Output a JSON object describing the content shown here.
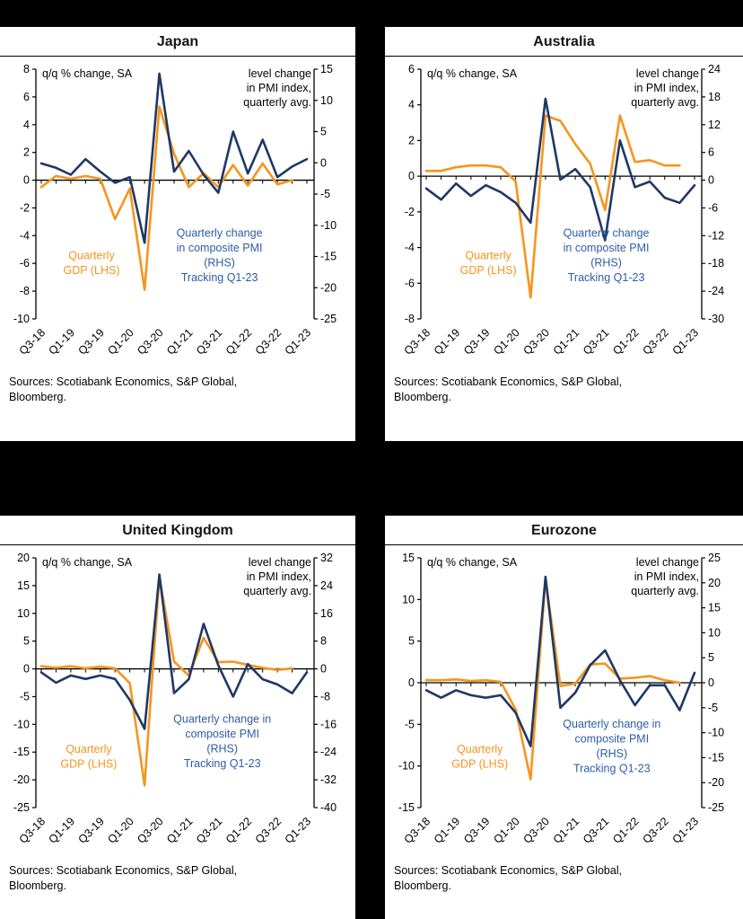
{
  "page": {
    "background": "#000000",
    "panel_background": "#FFFFFF"
  },
  "colors": {
    "gdp_line": "#F7941E",
    "gdp_text": "#F7941E",
    "pmi_line": "#1F3864",
    "pmi_text": "#2E5CA6",
    "axis": "#000000",
    "text": "#000000"
  },
  "chart_data": [
    {
      "type": "line",
      "title": "Japan",
      "inplot_left_label": "q/q % change, SA",
      "inplot_right_label": [
        "level change",
        "in PMI index,",
        "quarterly avg."
      ],
      "lhs_axis": {
        "ticks": [
          8,
          6,
          4,
          2,
          0,
          -2,
          -4,
          -6,
          -8,
          -10
        ]
      },
      "rhs_axis": {
        "ticks": [
          15,
          10,
          5,
          0,
          -5,
          -10,
          -15,
          -20,
          -25
        ]
      },
      "x_tick_labels": [
        "Q3-18",
        "Q1-19",
        "Q3-19",
        "Q1-20",
        "Q3-20",
        "Q1-21",
        "Q3-21",
        "Q1-22",
        "Q3-22",
        "Q1-23"
      ],
      "quarters": [
        "Q3-18",
        "Q4-18",
        "Q1-19",
        "Q2-19",
        "Q3-19",
        "Q4-19",
        "Q1-20",
        "Q2-20",
        "Q3-20",
        "Q4-20",
        "Q1-21",
        "Q2-21",
        "Q3-21",
        "Q4-21",
        "Q1-22",
        "Q2-22",
        "Q3-22",
        "Q4-22",
        "Q1-23"
      ],
      "series": [
        {
          "name": "Quarterly GDP (LHS)",
          "axis": "lhs",
          "color_key": "gdp",
          "values": [
            -0.5,
            0.3,
            0.1,
            0.3,
            0.1,
            -2.8,
            -0.6,
            -7.9,
            5.3,
            1.9,
            -0.5,
            0.5,
            -0.5,
            1.1,
            -0.4,
            1.2,
            -0.3,
            0.0,
            null
          ]
        },
        {
          "name": "Quarterly change in composite PMI (RHS), tracking Q1-23",
          "axis": "rhs",
          "color_key": "pmi",
          "values": [
            -0.1,
            -0.8,
            -1.9,
            0.6,
            -1.4,
            -3.2,
            -2.3,
            -12.8,
            14.3,
            -1.4,
            1.9,
            -1.9,
            -4.8,
            5.0,
            -1.7,
            3.7,
            -2.3,
            -0.6,
            0.6
          ]
        }
      ],
      "annotations": {
        "gdp": {
          "lines": [
            "Quarterly",
            "GDP (LHS)"
          ],
          "pos": [
            0.2,
            0.76
          ]
        },
        "pmi": {
          "lines": [
            "Quarterly change",
            "in composite PMI",
            "(RHS)",
            "Tracking Q1-23"
          ],
          "pos": [
            0.66,
            0.67
          ]
        }
      },
      "sources": [
        "Sources: Scotiabank Economics, S&P Global,",
        "Bloomberg."
      ]
    },
    {
      "type": "line",
      "title": "Australia",
      "inplot_left_label": "q/q % change, SA",
      "inplot_right_label": [
        "level change",
        "in PMI index,",
        "quarterly avg."
      ],
      "lhs_axis": {
        "ticks": [
          6,
          4,
          2,
          0,
          -2,
          -4,
          -6,
          -8
        ]
      },
      "rhs_axis": {
        "ticks": [
          24,
          18,
          12,
          6,
          0,
          -6,
          -12,
          -18,
          -24,
          -30
        ]
      },
      "x_tick_labels": [
        "Q3-18",
        "Q1-19",
        "Q3-19",
        "Q1-20",
        "Q3-20",
        "Q1-21",
        "Q3-21",
        "Q1-22",
        "Q3-22",
        "Q1-23"
      ],
      "quarters": [
        "Q3-18",
        "Q4-18",
        "Q1-19",
        "Q2-19",
        "Q3-19",
        "Q4-19",
        "Q1-20",
        "Q2-20",
        "Q3-20",
        "Q4-20",
        "Q1-21",
        "Q2-21",
        "Q3-21",
        "Q4-21",
        "Q1-22",
        "Q2-22",
        "Q3-22",
        "Q4-22",
        "Q1-23"
      ],
      "series": [
        {
          "name": "Quarterly GDP (LHS)",
          "axis": "lhs",
          "color_key": "gdp",
          "values": [
            0.3,
            0.3,
            0.5,
            0.6,
            0.6,
            0.5,
            -0.3,
            -6.8,
            3.4,
            3.1,
            1.8,
            0.7,
            -1.9,
            3.4,
            0.8,
            0.9,
            0.6,
            0.6,
            null
          ]
        },
        {
          "name": "Quarterly change in composite PMI (RHS), tracking Q1-23",
          "axis": "rhs",
          "color_key": "pmi",
          "values": [
            -1.8,
            -4.2,
            -0.7,
            -3.4,
            -1.1,
            -2.6,
            -4.9,
            -9.2,
            17.6,
            0.1,
            2.4,
            -1.5,
            -13.0,
            8.6,
            -1.5,
            -0.3,
            -3.8,
            -4.9,
            -1.1
          ]
        }
      ],
      "annotations": {
        "gdp": {
          "lines": [
            "Quarterly",
            "GDP (LHS)"
          ],
          "pos": [
            0.24,
            0.76
          ]
        },
        "pmi": {
          "lines": [
            "Quarterly change",
            "in composite PMI",
            "(RHS)",
            "Tracking Q1-23"
          ],
          "pos": [
            0.66,
            0.67
          ]
        }
      },
      "sources": [
        "Sources: Scotiabank Economics, S&P Global,",
        "Bloomberg."
      ]
    },
    {
      "type": "line",
      "title": "United Kingdom",
      "inplot_left_label": "q/q % change, SA",
      "inplot_right_label": [
        "level change",
        "in PMI index,",
        "quarterly avg."
      ],
      "lhs_axis": {
        "ticks": [
          20,
          15,
          10,
          5,
          0,
          -5,
          -10,
          -15,
          -20,
          -25
        ]
      },
      "rhs_axis": {
        "ticks": [
          32,
          24,
          16,
          8,
          0,
          -8,
          -16,
          -24,
          -32,
          -40
        ]
      },
      "x_tick_labels": [
        "Q3-18",
        "Q1-19",
        "Q3-19",
        "Q1-20",
        "Q3-20",
        "Q1-21",
        "Q3-21",
        "Q1-22",
        "Q3-22",
        "Q1-23"
      ],
      "quarters": [
        "Q3-18",
        "Q4-18",
        "Q1-19",
        "Q2-19",
        "Q3-19",
        "Q4-19",
        "Q1-20",
        "Q2-20",
        "Q3-20",
        "Q4-20",
        "Q1-21",
        "Q2-21",
        "Q3-21",
        "Q4-21",
        "Q1-22",
        "Q2-22",
        "Q3-22",
        "Q4-22",
        "Q1-23"
      ],
      "series": [
        {
          "name": "Quarterly GDP (LHS)",
          "axis": "lhs",
          "color_key": "gdp",
          "values": [
            0.5,
            0.2,
            0.5,
            0.1,
            0.4,
            0.1,
            -2.6,
            -21.0,
            16.6,
            1.3,
            -1.2,
            5.6,
            1.2,
            1.3,
            0.7,
            0.2,
            -0.2,
            0.1,
            null
          ]
        },
        {
          "name": "Quarterly change in composite PMI (RHS), tracking Q1-23",
          "axis": "rhs",
          "color_key": "pmi",
          "values": [
            -1.0,
            -4.0,
            -1.9,
            -2.9,
            -1.9,
            -2.9,
            -9.0,
            -17.3,
            27.2,
            -7.0,
            -3.0,
            13.0,
            1.0,
            -8.0,
            1.4,
            -3.0,
            -4.5,
            -7.0,
            -1.0
          ]
        }
      ],
      "annotations": {
        "gdp": {
          "lines": [
            "Quarterly",
            "GDP (LHS)"
          ],
          "pos": [
            0.19,
            0.78
          ]
        },
        "pmi": {
          "lines": [
            "Quarterly change in",
            "composite PMI",
            "(RHS)",
            "Tracking Q1-23"
          ],
          "pos": [
            0.67,
            0.66
          ]
        }
      },
      "sources": [
        "Sources: Scotiabank Economics, S&P Global,",
        "Bloomberg."
      ]
    },
    {
      "type": "line",
      "title": "Eurozone",
      "inplot_left_label": "q/q % change, SA",
      "inplot_right_label": [
        "level change",
        "in PMI index,",
        "quarterly avg."
      ],
      "lhs_axis": {
        "ticks": [
          15,
          10,
          5,
          0,
          -5,
          -10,
          -15
        ]
      },
      "rhs_axis": {
        "ticks": [
          25,
          20,
          15,
          10,
          5,
          0,
          -5,
          -10,
          -15,
          -20,
          -25
        ]
      },
      "x_tick_labels": [
        "Q3-18",
        "Q1-19",
        "Q3-19",
        "Q1-20",
        "Q3-20",
        "Q1-21",
        "Q3-21",
        "Q1-22",
        "Q3-22",
        "Q1-23"
      ],
      "quarters": [
        "Q3-18",
        "Q4-18",
        "Q1-19",
        "Q2-19",
        "Q3-19",
        "Q4-19",
        "Q1-20",
        "Q2-20",
        "Q3-20",
        "Q4-20",
        "Q1-21",
        "Q2-21",
        "Q3-21",
        "Q4-21",
        "Q1-22",
        "Q2-22",
        "Q3-22",
        "Q4-22",
        "Q1-23"
      ],
      "series": [
        {
          "name": "Quarterly GDP (LHS)",
          "axis": "lhs",
          "color_key": "gdp",
          "values": [
            0.3,
            0.3,
            0.4,
            0.2,
            0.3,
            0.1,
            -3.2,
            -11.6,
            12.5,
            -0.4,
            -0.1,
            2.2,
            2.3,
            0.5,
            0.6,
            0.8,
            0.3,
            0.0,
            null
          ]
        },
        {
          "name": "Quarterly change in composite PMI (RHS), tracking Q1-23",
          "axis": "rhs",
          "color_key": "pmi",
          "values": [
            -1.5,
            -3.0,
            -1.5,
            -2.5,
            -3.0,
            -2.5,
            -6.0,
            -12.7,
            21.2,
            -5.0,
            -2.0,
            3.5,
            6.5,
            0.5,
            -4.5,
            -0.5,
            -0.5,
            -5.5,
            2.0
          ]
        }
      ],
      "annotations": {
        "gdp": {
          "lines": [
            "Quarterly",
            "GDP (LHS)"
          ],
          "pos": [
            0.21,
            0.78
          ]
        },
        "pmi": {
          "lines": [
            "Quarterly change in",
            "composite PMI",
            "(RHS)",
            "Tracking Q1-23"
          ],
          "pos": [
            0.68,
            0.68
          ]
        }
      },
      "sources": [
        "Sources: Scotiabank Economics, S&P Global,",
        "Bloomberg."
      ]
    }
  ]
}
